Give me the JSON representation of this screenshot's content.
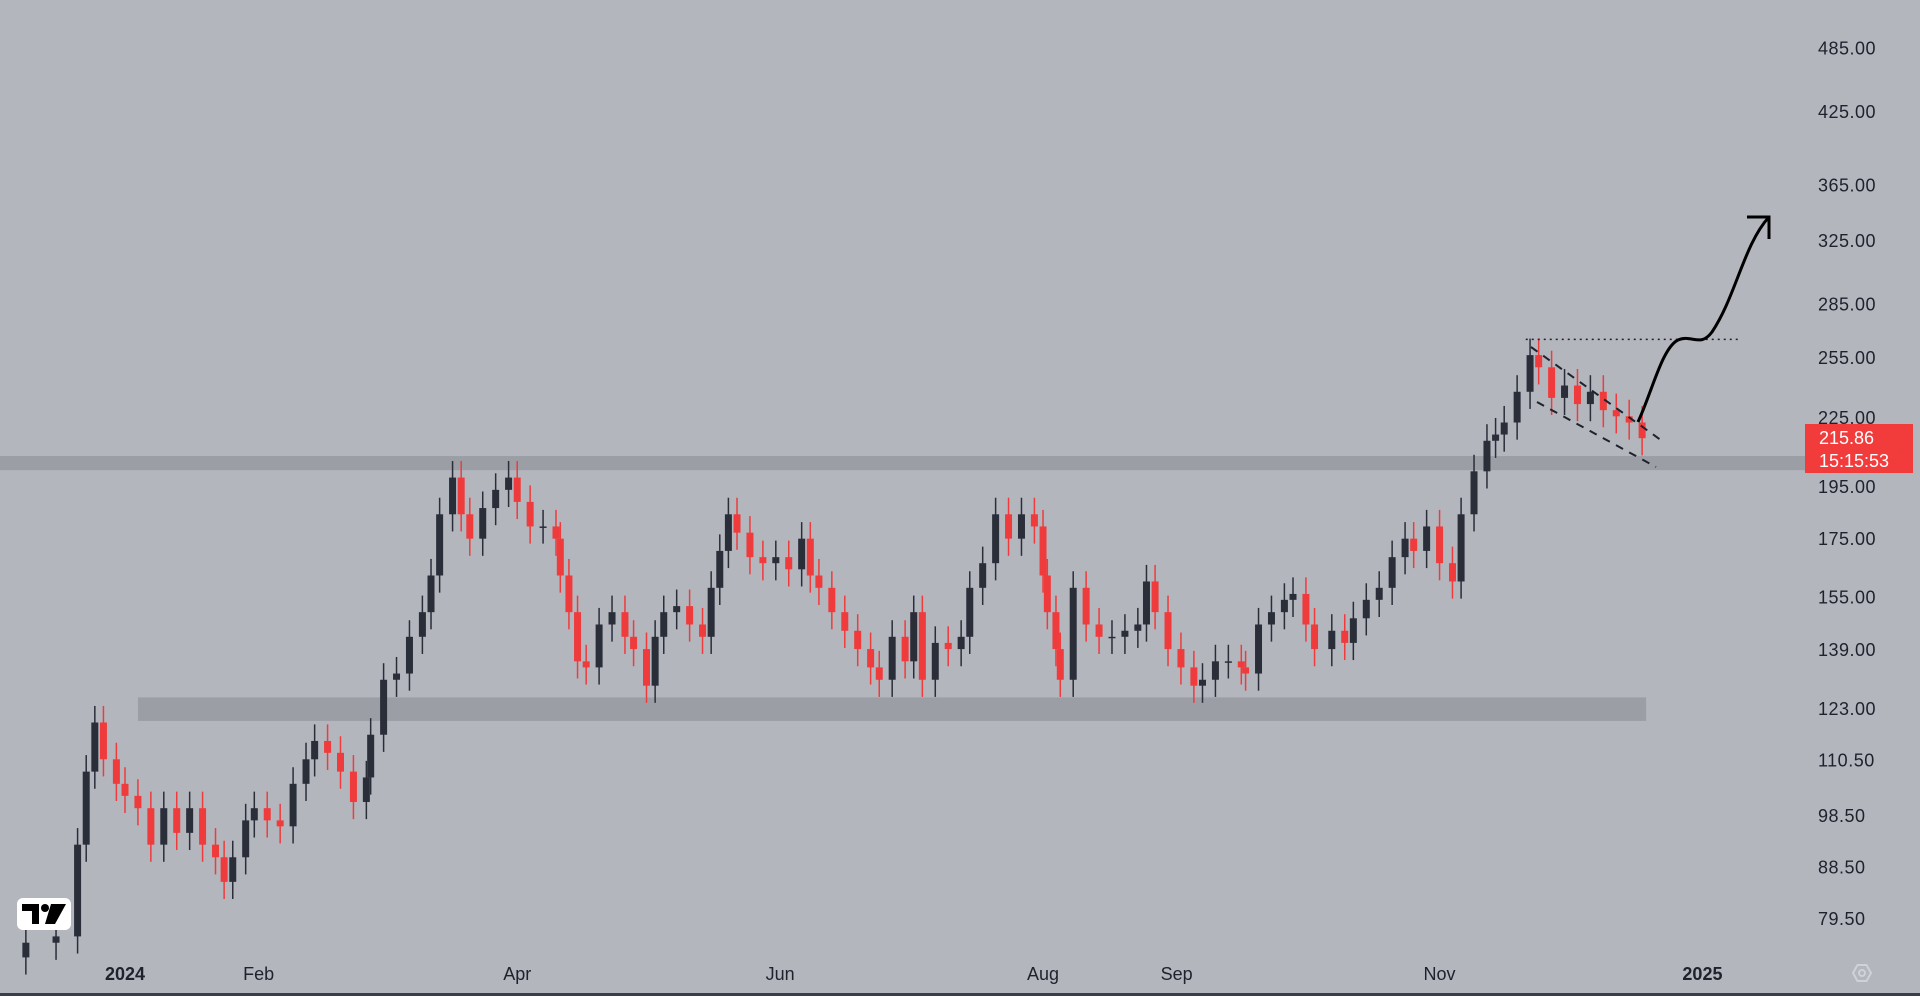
{
  "colors": {
    "background": "#b4b6be",
    "up": "#2a2e39",
    "down": "#ef3b3b",
    "band": "#9c9ea6",
    "last_price_bg": "#f23b3b",
    "text": "#1e222d"
  },
  "price_axis": {
    "labels": [
      "485.00",
      "425.00",
      "365.00",
      "325.00",
      "285.00",
      "255.00",
      "225.00",
      "195.00",
      "175.00",
      "155.00",
      "139.00",
      "123.00",
      "110.50",
      "98.50",
      "88.50",
      "79.50"
    ]
  },
  "time_axis": {
    "labels": [
      {
        "text": "2024",
        "date": "2024-01-01",
        "bold": true
      },
      {
        "text": "Feb",
        "date": "2024-02-01",
        "bold": false
      },
      {
        "text": "Apr",
        "date": "2024-04-01",
        "bold": false
      },
      {
        "text": "Jun",
        "date": "2024-06-01",
        "bold": false
      },
      {
        "text": "Aug",
        "date": "2024-08-01",
        "bold": false
      },
      {
        "text": "Sep",
        "date": "2024-09-01",
        "bold": false
      },
      {
        "text": "Nov",
        "date": "2024-11-01",
        "bold": false
      },
      {
        "text": "2025",
        "date": "2025-01-01",
        "bold": true
      }
    ]
  },
  "last_price": {
    "value": "215.86",
    "countdown": "15:15:53"
  },
  "icons": {
    "logo": "tradingview-logo",
    "settings": "settings-icon"
  },
  "chart_data": {
    "type": "candlestick",
    "title": "",
    "y_scale": "log",
    "ylim": [
      76,
      520
    ],
    "xlim": [
      "2023-12-05",
      "2025-01-25"
    ],
    "grid": false,
    "levels": [
      {
        "type": "horizontal-band",
        "from": 202,
        "to": 208,
        "extent": "full"
      },
      {
        "type": "horizontal-band",
        "from": 120,
        "to": 126,
        "start": "2024-01-04",
        "end": "2024-12-18"
      },
      {
        "type": "dotted-line",
        "price": 265,
        "start": "2024-11-21",
        "end": "2025-01-10"
      }
    ],
    "x": [
      "2023-12-09",
      "2023-12-16",
      "2023-12-21",
      "2023-12-23",
      "2023-12-25",
      "2023-12-27",
      "2023-12-30",
      "2024-01-01",
      "2024-01-04",
      "2024-01-07",
      "2024-01-10",
      "2024-01-13",
      "2024-01-16",
      "2024-01-19",
      "2024-01-22",
      "2024-01-24",
      "2024-01-26",
      "2024-01-29",
      "2024-01-31",
      "2024-02-03",
      "2024-02-06",
      "2024-02-09",
      "2024-02-12",
      "2024-02-14",
      "2024-02-17",
      "2024-02-20",
      "2024-02-23",
      "2024-02-26",
      "2024-02-27",
      "2024-03-01",
      "2024-03-04",
      "2024-03-07",
      "2024-03-10",
      "2024-03-12",
      "2024-03-14",
      "2024-03-17",
      "2024-03-19",
      "2024-03-21",
      "2024-03-24",
      "2024-03-27",
      "2024-03-30",
      "2024-04-01",
      "2024-04-04",
      "2024-04-07",
      "2024-04-10",
      "2024-04-11",
      "2024-04-13",
      "2024-04-15",
      "2024-04-17",
      "2024-04-20",
      "2024-04-23",
      "2024-04-26",
      "2024-04-28",
      "2024-05-01",
      "2024-05-03",
      "2024-05-05",
      "2024-05-08",
      "2024-05-11",
      "2024-05-14",
      "2024-05-16",
      "2024-05-18",
      "2024-05-20",
      "2024-05-22",
      "2024-05-25",
      "2024-05-28",
      "2024-05-31",
      "2024-06-03",
      "2024-06-06",
      "2024-06-08",
      "2024-06-10",
      "2024-06-13",
      "2024-06-16",
      "2024-06-19",
      "2024-06-22",
      "2024-06-24",
      "2024-06-27",
      "2024-06-30",
      "2024-07-02",
      "2024-07-04",
      "2024-07-07",
      "2024-07-10",
      "2024-07-13",
      "2024-07-15",
      "2024-07-18",
      "2024-07-21",
      "2024-07-24",
      "2024-07-27",
      "2024-07-30",
      "2024-08-01",
      "2024-08-02",
      "2024-08-04",
      "2024-08-05",
      "2024-08-08",
      "2024-08-11",
      "2024-08-14",
      "2024-08-17",
      "2024-08-20",
      "2024-08-23",
      "2024-08-25",
      "2024-08-27",
      "2024-08-30",
      "2024-09-02",
      "2024-09-05",
      "2024-09-07",
      "2024-09-10",
      "2024-09-13",
      "2024-09-16",
      "2024-09-17",
      "2024-09-20",
      "2024-09-23",
      "2024-09-26",
      "2024-09-28",
      "2024-10-01",
      "2024-10-03",
      "2024-10-07",
      "2024-10-10",
      "2024-10-12",
      "2024-10-15",
      "2024-10-18",
      "2024-10-21",
      "2024-10-24",
      "2024-10-26",
      "2024-10-29",
      "2024-11-01",
      "2024-11-04",
      "2024-11-06",
      "2024-11-09",
      "2024-11-12",
      "2024-11-14",
      "2024-11-16",
      "2024-11-19",
      "2024-11-22",
      "2024-11-24",
      "2024-11-27",
      "2024-11-30",
      "2024-12-03",
      "2024-12-06",
      "2024-12-09",
      "2024-12-12",
      "2024-12-15",
      "2024-12-18"
    ],
    "close": [
      75.7,
      76.7,
      92.8,
      108,
      119.6,
      110.8,
      105.3,
      102.7,
      100.1,
      92.8,
      100.1,
      95.1,
      100.1,
      92.8,
      90.4,
      85.9,
      90.4,
      97.6,
      100.1,
      97.6,
      96.4,
      105.3,
      110.8,
      115.1,
      112.3,
      108,
      101.4,
      106.7,
      116.6,
      130.7,
      132.4,
      142.9,
      150.4,
      162.3,
      184.3,
      198.9,
      184.3,
      175.2,
      186.7,
      193.9,
      198.9,
      189.1,
      179.7,
      179.7,
      175.2,
      162.3,
      150.4,
      135.8,
      134.1,
      146.6,
      150.4,
      142.9,
      139.3,
      129.1,
      142.9,
      150.4,
      152.3,
      146.6,
      142.9,
      158.2,
      170.8,
      184.3,
      177.4,
      168.6,
      166.5,
      168.6,
      164.4,
      175.2,
      162.3,
      158.2,
      150.4,
      144.7,
      139.3,
      134.1,
      130.7,
      142.9,
      135.8,
      150.4,
      130.7,
      141.1,
      139.3,
      142.9,
      158.2,
      166.5,
      184.3,
      175.2,
      184.3,
      179.7,
      162.3,
      150.4,
      139.3,
      130.7,
      158.2,
      146.6,
      142.9,
      142.9,
      144.7,
      146.6,
      160.3,
      150.4,
      139.3,
      134.1,
      129.1,
      130.7,
      135.8,
      135.8,
      134.1,
      132.4,
      146.6,
      150.4,
      154.3,
      156.2,
      146.6,
      139.3,
      144.7,
      141.1,
      148.5,
      154.3,
      158.2,
      168.6,
      175.2,
      170.8,
      179.7,
      166.5,
      160.3,
      184.3,
      201.5,
      214.7,
      217.5,
      223,
      237.7,
      256.5,
      250.1,
      234.7,
      240.8,
      231.7,
      237.7,
      228.8,
      225.9,
      223,
      215.86
    ]
  }
}
